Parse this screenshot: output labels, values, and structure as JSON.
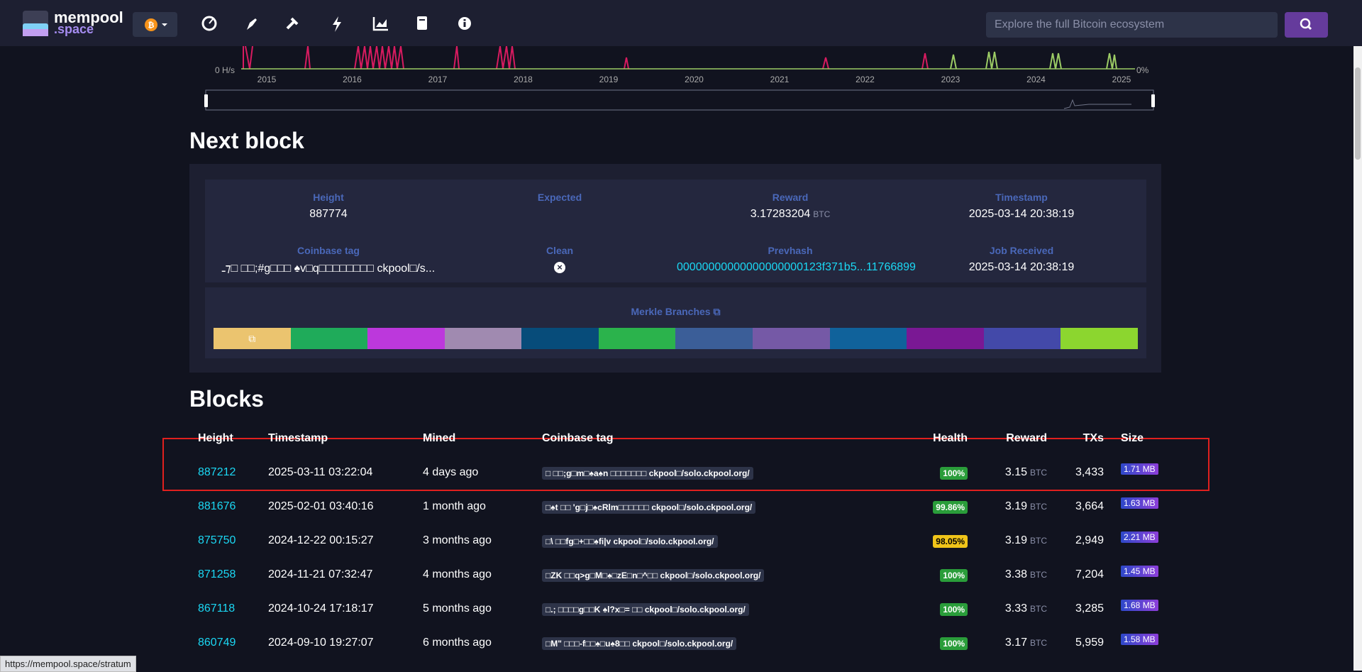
{
  "header": {
    "logo_top": "mempool",
    "logo_bottom": ".space",
    "search_placeholder": "Explore the full Bitcoin ecosystem"
  },
  "chart": {
    "y_left_label": "0 H/s",
    "y_right_label": "0%",
    "x_labels": [
      "2015",
      "2016",
      "2017",
      "2018",
      "2019",
      "2020",
      "2021",
      "2022",
      "2023",
      "2024",
      "2025"
    ]
  },
  "next_block": {
    "title": "Next block",
    "fields": [
      {
        "label": "Height",
        "value": "887774"
      },
      {
        "label": "Expected",
        "value": ""
      },
      {
        "label": "Reward",
        "value": "3.17283204",
        "unit": "BTC"
      },
      {
        "label": "Timestamp",
        "value": "2025-03-14 20:38:19"
      },
      {
        "label": "Coinbase tag",
        "value": "ـ⁊□ □□;#g□□□ ♠v□q□□□□□□□□ ckpool□/s..."
      },
      {
        "label": "Clean",
        "value": "×"
      },
      {
        "label": "Prevhash",
        "value": "00000000000000000000123f371b5...11766899",
        "link": true
      },
      {
        "label": "Job Received",
        "value": "2025-03-14 20:38:19"
      }
    ],
    "merkle_title": "Merkle Branches",
    "merkle_colors": [
      "#ebc46f",
      "#1fab5a",
      "#bc38dc",
      "#a08ab0",
      "#074c7a",
      "#2bb34c",
      "#3b5e98",
      "#7559a6",
      "#10629b",
      "#7a1894",
      "#4349a9",
      "#8cd62f"
    ]
  },
  "blocks": {
    "title": "Blocks",
    "columns": [
      "Height",
      "Timestamp",
      "Mined",
      "Coinbase tag",
      "Health",
      "Reward",
      "TXs",
      "Size"
    ],
    "unit": "BTC",
    "rows": [
      {
        "height": "887212",
        "timestamp": "2025-03-11 03:22:04",
        "mined": "4 days ago",
        "tag": "□ □□;g□m□♠a♠n □□□□□□□ ckpool□/solo.ckpool.org/",
        "health": "100%",
        "health_color": "#2a9d3a",
        "reward": "3.15",
        "txs": "3,433",
        "size": "1.71 MB"
      },
      {
        "height": "881676",
        "timestamp": "2025-02-01 03:40:16",
        "mined": "1 month ago",
        "tag": "□♠t □□ 'g□j□♠cRlm□□□□□□ ckpool□/solo.ckpool.org/",
        "health": "99.86%",
        "health_color": "#2a9d3a",
        "reward": "3.19",
        "txs": "3,664",
        "size": "1.63 MB"
      },
      {
        "height": "875750",
        "timestamp": "2024-12-22 00:15:27",
        "mined": "3 months ago",
        "tag": "□\\ □□fg□+□□♠fi|v ckpool□/solo.ckpool.org/",
        "health": "98.05%",
        "health_color": "#f0c419",
        "reward": "3.19",
        "txs": "2,949",
        "size": "2.21 MB"
      },
      {
        "height": "871258",
        "timestamp": "2024-11-21 07:32:47",
        "mined": "4 months ago",
        "tag": "□ZK □□q>g□M□♠□zE□n□^□□ ckpool□/solo.ckpool.org/",
        "health": "100%",
        "health_color": "#2a9d3a",
        "reward": "3.38",
        "txs": "7,204",
        "size": "1.45 MB"
      },
      {
        "height": "867118",
        "timestamp": "2024-10-24 17:18:17",
        "mined": "5 months ago",
        "tag": "□.; □□□□g□□K ♠l?x□= □□ ckpool□/solo.ckpool.org/",
        "health": "100%",
        "health_color": "#2a9d3a",
        "reward": "3.33",
        "txs": "3,285",
        "size": "1.68 MB"
      },
      {
        "height": "860749",
        "timestamp": "2024-09-10 19:27:07",
        "mined": "6 months ago",
        "tag": "□M\" □□□-f□□♠□u♠8□□ ckpool□/solo.ckpool.org/",
        "health": "100%",
        "health_color": "#2a9d3a",
        "reward": "3.17",
        "txs": "5,959",
        "size": "1.58 MB"
      }
    ]
  },
  "status_bar": "https://mempool.space/stratum"
}
